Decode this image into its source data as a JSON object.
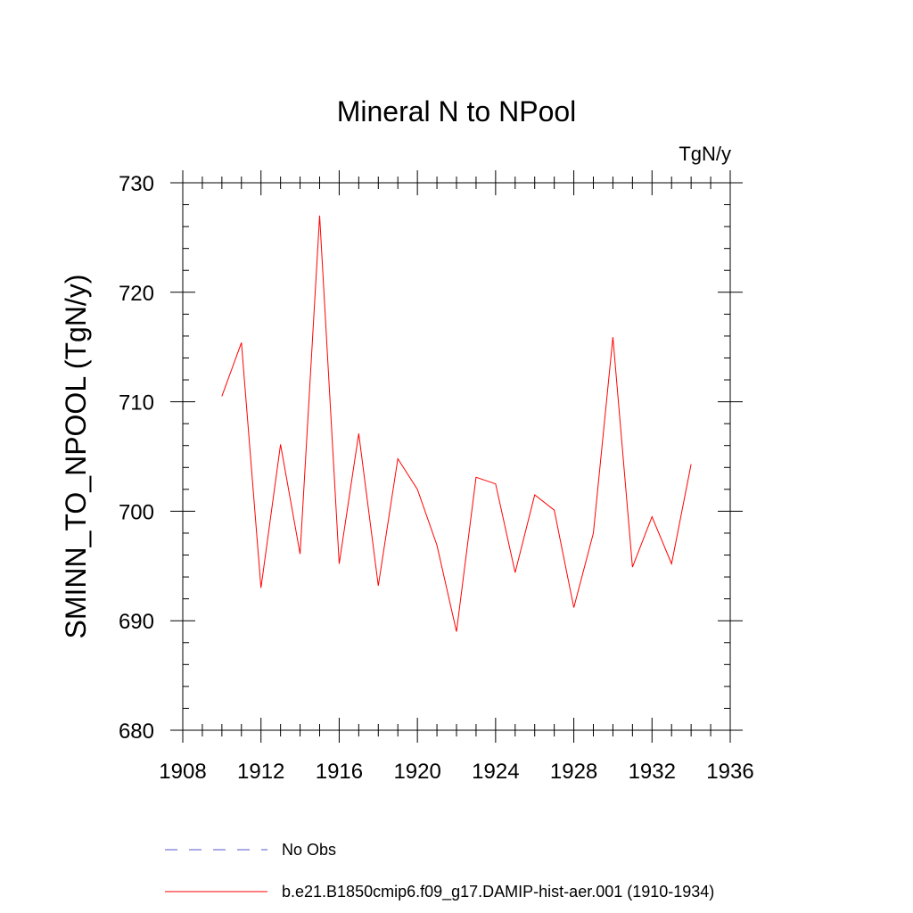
{
  "chart_data": {
    "type": "line",
    "title": "Mineral N to NPool",
    "units": "TgN/y",
    "ylabel": "SMINN_TO_NPOOL  (TgN/y)",
    "xlabel": "",
    "xlim": [
      1908,
      1936
    ],
    "ylim": [
      680,
      730
    ],
    "x_ticks": [
      1908,
      1912,
      1916,
      1920,
      1924,
      1928,
      1932,
      1936
    ],
    "y_ticks": [
      680,
      690,
      700,
      710,
      720,
      730
    ],
    "x_tick_labels": [
      "1908",
      "1912",
      "1916",
      "1920",
      "1924",
      "1928",
      "1932",
      "1936"
    ],
    "y_tick_labels": [
      "680",
      "690",
      "700",
      "710",
      "720",
      "730"
    ],
    "grid": false,
    "legend_position": "bottom",
    "series": [
      {
        "name": "No Obs",
        "color": "#5555cc",
        "style": "dashed",
        "x": [],
        "values": []
      },
      {
        "name": "b.e21.B1850cmip6.f09_g17.DAMIP-hist-aer.001 (1910-1934)",
        "color": "#ff0000",
        "style": "solid",
        "x": [
          1910,
          1911,
          1912,
          1913,
          1914,
          1915,
          1916,
          1917,
          1918,
          1919,
          1920,
          1921,
          1922,
          1923,
          1924,
          1925,
          1926,
          1927,
          1928,
          1929,
          1930,
          1931,
          1932,
          1933,
          1934
        ],
        "values": [
          710.5,
          715.4,
          693.0,
          706.1,
          696.1,
          727.0,
          695.2,
          707.1,
          693.2,
          704.8,
          702.0,
          696.9,
          689.0,
          703.1,
          702.5,
          694.4,
          701.5,
          700.1,
          691.2,
          698.0,
          715.9,
          694.9,
          699.5,
          695.2,
          704.3
        ]
      }
    ]
  }
}
